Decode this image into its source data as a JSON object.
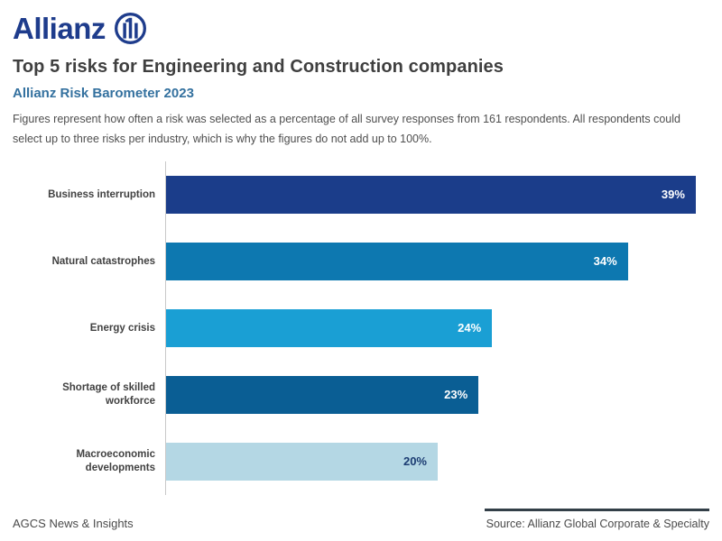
{
  "brand": {
    "wordmark": "Allianz",
    "logo_icon": "allianz-eagle-icon",
    "logo_color": "#1e3c8c"
  },
  "header": {
    "title": "Top 5 risks for Engineering and Construction companies",
    "subtitle": "Allianz Risk Barometer 2023",
    "description": "Figures represent how often a risk was selected as a percentage of all survey responses from 161 respondents. All respondents could select up to three risks per industry, which is why the figures do not add up to 100%."
  },
  "chart_data": {
    "type": "bar",
    "orientation": "horizontal",
    "title": "Top 5 risks for Engineering and Construction companies",
    "subtitle": "Allianz Risk Barometer 2023",
    "categories": [
      "Business interruption",
      "Natural catastrophes",
      "Energy crisis",
      "Shortage of skilled workforce",
      "Macroeconomic developments"
    ],
    "values": [
      39,
      34,
      24,
      23,
      20
    ],
    "value_labels": [
      "39%",
      "34%",
      "24%",
      "23%",
      "20%"
    ],
    "value_suffix": "%",
    "bar_colors": [
      "#1b3d8a",
      "#0d78b0",
      "#1a9fd4",
      "#0a5e94",
      "#b4d7e4"
    ],
    "value_label_colors": [
      "#ffffff",
      "#ffffff",
      "#ffffff",
      "#ffffff",
      "#1b3c72"
    ],
    "xlim": [
      0,
      40
    ],
    "grid": false,
    "legend": false,
    "axis_line_color": "#c9c9c9"
  },
  "footer": {
    "left_text": "AGCS News & Insights",
    "source_text": "Source: Allianz Global Corporate & Specialty"
  },
  "colors": {
    "title": "#3f3f3f",
    "subtitle": "#34719f",
    "body_text": "#4f4f4f",
    "category_label": "#414141",
    "source_rule": "#333f48",
    "background": "#ffffff"
  }
}
